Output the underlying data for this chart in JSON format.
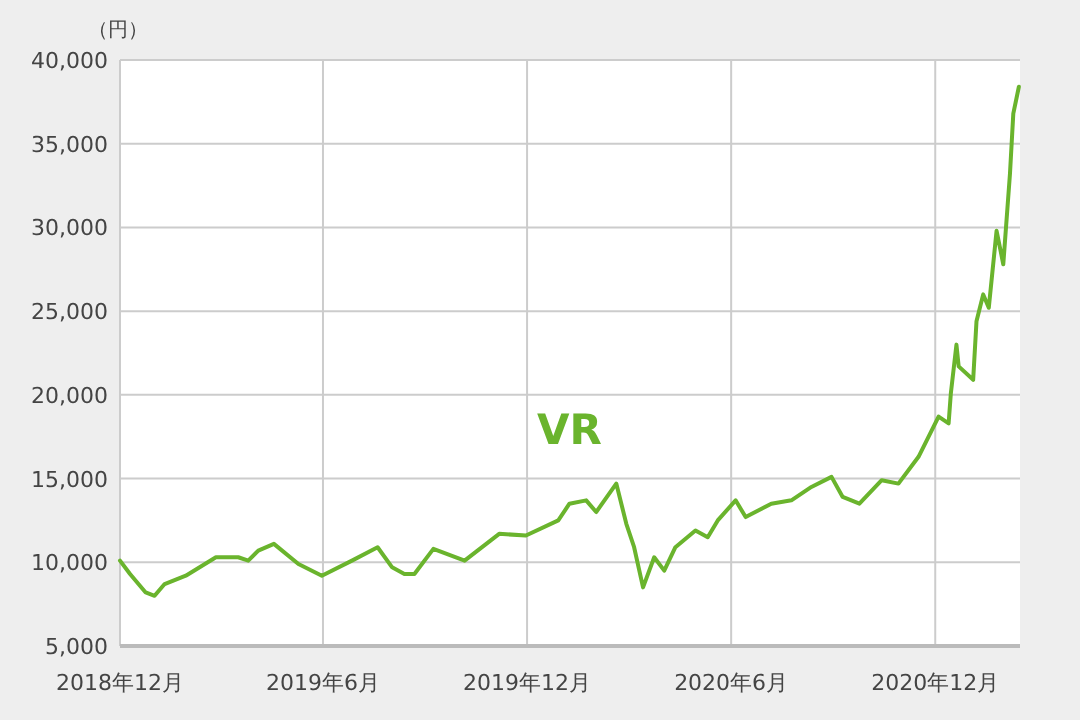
{
  "chart_data": {
    "type": "line",
    "ylabel": "（円）",
    "xlim": [
      "2018-12-01",
      "2021-02-15"
    ],
    "xticks": [
      {
        "value": "2018-12-01",
        "label": "2018年12月"
      },
      {
        "value": "2019-06-01",
        "label": "2019年6月"
      },
      {
        "value": "2019-12-01",
        "label": "2019年12月"
      },
      {
        "value": "2020-06-01",
        "label": "2020年6月"
      },
      {
        "value": "2020-12-01",
        "label": "2020年12月"
      }
    ],
    "ylim": [
      5000,
      40000
    ],
    "yticks": [
      {
        "value": 5000,
        "label": "5,000"
      },
      {
        "value": 10000,
        "label": "10,000"
      },
      {
        "value": 15000,
        "label": "15,000"
      },
      {
        "value": 20000,
        "label": "20,000"
      },
      {
        "value": 25000,
        "label": "25,000"
      },
      {
        "value": 30000,
        "label": "30,000"
      },
      {
        "value": 35000,
        "label": "35,000"
      },
      {
        "value": 40000,
        "label": "40,000"
      }
    ],
    "grid": true,
    "series": [
      {
        "name": "VR",
        "color": "#6ab42d",
        "x": [
          "2018-12-01",
          "2018-12-10",
          "2018-12-24",
          "2019-01-01",
          "2019-01-10",
          "2019-01-29",
          "2019-02-25",
          "2019-03-17",
          "2019-03-26",
          "2019-04-04",
          "2019-04-18",
          "2019-05-10",
          "2019-05-31",
          "2019-06-27",
          "2019-07-20",
          "2019-08-02",
          "2019-08-13",
          "2019-08-22",
          "2019-09-08",
          "2019-10-06",
          "2019-11-06",
          "2019-11-30",
          "2019-12-29",
          "2020-01-08",
          "2020-01-23",
          "2020-02-01",
          "2020-02-19",
          "2020-02-28",
          "2020-03-06",
          "2020-03-14",
          "2020-03-24",
          "2020-04-02",
          "2020-04-12",
          "2020-04-30",
          "2020-05-11",
          "2020-05-20",
          "2020-06-05",
          "2020-06-14",
          "2020-07-07",
          "2020-07-25",
          "2020-08-12",
          "2020-08-30",
          "2020-09-09",
          "2020-09-24",
          "2020-10-14",
          "2020-10-29",
          "2020-11-16",
          "2020-12-04",
          "2020-12-13",
          "2020-12-15",
          "2020-12-20",
          "2020-12-22",
          "2021-01-04",
          "2021-01-07",
          "2021-01-13",
          "2021-01-18",
          "2021-01-25",
          "2021-01-31",
          "2021-02-06",
          "2021-02-09",
          "2021-02-14"
        ],
        "values": [
          10100,
          9300,
          8200,
          8000,
          8700,
          9200,
          10300,
          10300,
          10100,
          10700,
          11100,
          9900,
          9200,
          10100,
          10900,
          9700,
          9300,
          9300,
          10800,
          10100,
          11700,
          11600,
          12500,
          13500,
          13700,
          13000,
          14700,
          12300,
          10900,
          8500,
          10300,
          9500,
          10900,
          11900,
          11500,
          12500,
          13700,
          12700,
          13500,
          13700,
          14500,
          15100,
          13900,
          13500,
          14900,
          14700,
          16300,
          18700,
          18300,
          20100,
          23000,
          21700,
          20900,
          24400,
          26000,
          25200,
          29800,
          27800,
          33200,
          36800,
          38400
        ]
      }
    ]
  }
}
